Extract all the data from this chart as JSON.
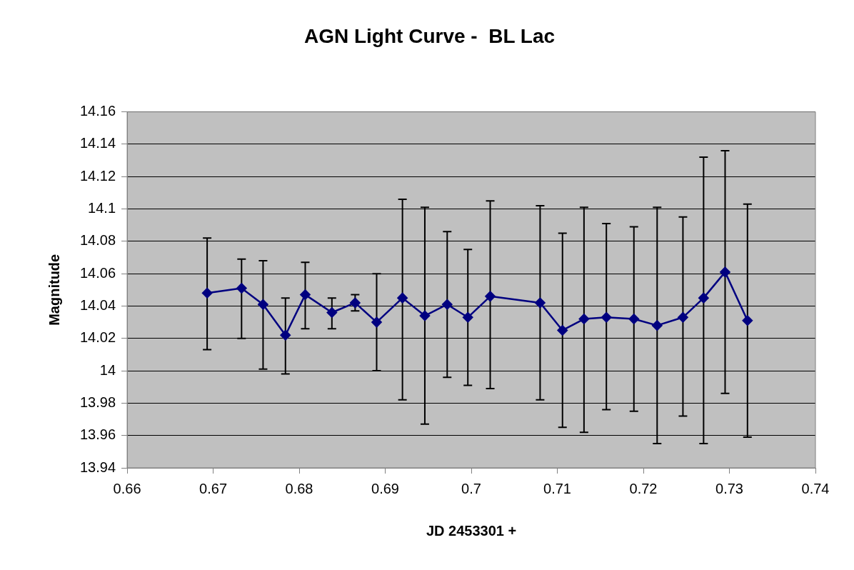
{
  "chart_data": {
    "type": "line",
    "title": "AGN Light Curve -  BL Lac",
    "xlabel": "JD 2453301 +",
    "ylabel": "Magnitude",
    "x": [
      0.6693,
      0.6733,
      0.6758,
      0.6784,
      0.6807,
      0.6838,
      0.6865,
      0.689,
      0.692,
      0.6946,
      0.6972,
      0.6996,
      0.7022,
      0.708,
      0.7106,
      0.7131,
      0.7157,
      0.7189,
      0.7216,
      0.7246,
      0.727,
      0.7295,
      0.7321
    ],
    "series": [
      {
        "color": "#000080",
        "values": [
          14.048,
          14.051,
          14.041,
          14.022,
          14.047,
          14.036,
          14.042,
          14.03,
          14.045,
          14.034,
          14.041,
          14.033,
          14.046,
          14.042,
          14.025,
          14.032,
          14.033,
          14.032,
          14.028,
          14.033,
          14.045,
          14.061,
          14.031
        ],
        "errors": [
          [
            14.013,
            14.082
          ],
          [
            14.02,
            14.069
          ],
          [
            14.001,
            14.068
          ],
          [
            13.998,
            14.045
          ],
          [
            14.026,
            14.067
          ],
          [
            14.026,
            14.045
          ],
          [
            14.037,
            14.047
          ],
          [
            14.0,
            14.06
          ],
          [
            13.982,
            14.106
          ],
          [
            13.967,
            14.101
          ],
          [
            13.996,
            14.086
          ],
          [
            13.991,
            14.075
          ],
          [
            13.989,
            14.105
          ],
          [
            13.982,
            14.102
          ],
          [
            13.965,
            14.085
          ],
          [
            13.962,
            14.101
          ],
          [
            13.976,
            14.091
          ],
          [
            13.975,
            14.089
          ],
          [
            13.955,
            14.101
          ],
          [
            13.972,
            14.095
          ],
          [
            13.955,
            14.132
          ],
          [
            13.986,
            14.136
          ],
          [
            13.959,
            14.103
          ]
        ]
      }
    ],
    "xlim": [
      0.66,
      0.74
    ],
    "xticks": [
      0.66,
      0.67,
      0.68,
      0.69,
      0.7,
      0.71,
      0.72,
      0.73,
      0.74
    ],
    "ylim": [
      13.94,
      14.16
    ],
    "yticks": [
      13.94,
      13.96,
      13.98,
      14,
      14.02,
      14.04,
      14.06,
      14.08,
      14.1,
      14.12,
      14.14,
      14.16
    ],
    "grid": "y",
    "legend": false,
    "marker": "diamond",
    "line_style": "solid"
  }
}
